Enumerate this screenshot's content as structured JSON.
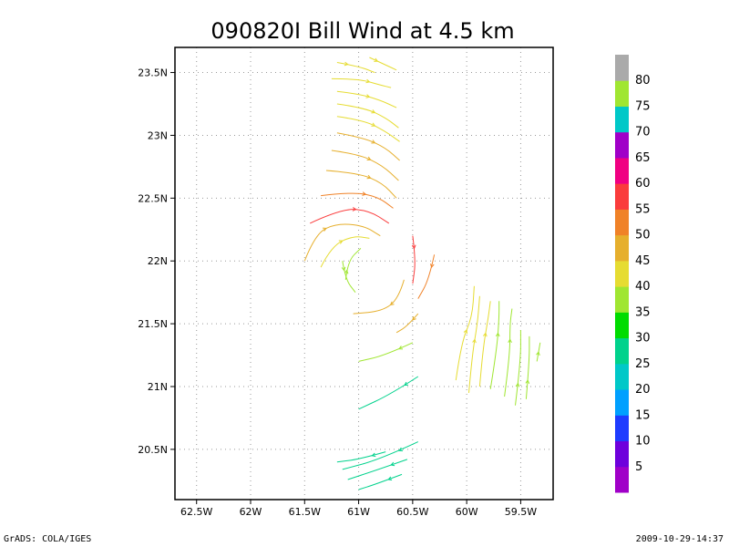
{
  "chart_data": {
    "type": "streamline",
    "title": "090820I Bill Wind at 4.5 km",
    "x_ticks": [
      "62.5W",
      "62W",
      "61.5W",
      "61W",
      "60.5W",
      "60W",
      "59.5W"
    ],
    "x_values": [
      -62.5,
      -62,
      -61.5,
      -61,
      -60.5,
      -60,
      -59.5
    ],
    "y_ticks": [
      "23.5N",
      "23N",
      "22.5N",
      "22N",
      "21.5N",
      "21N",
      "20.5N"
    ],
    "y_values": [
      23.5,
      23,
      22.5,
      22,
      21.5,
      21,
      20.5
    ],
    "xlim": [
      -62.7,
      -59.2
    ],
    "ylim": [
      20.1,
      23.7
    ],
    "grid": true,
    "colorbar": {
      "labels": [
        "5",
        "10",
        "15",
        "20",
        "25",
        "30",
        "35",
        "40",
        "45",
        "50",
        "55",
        "60",
        "65",
        "70",
        "75",
        "80"
      ],
      "colors": [
        "#a000c8",
        "#6e00dc",
        "#1e3cff",
        "#00a0ff",
        "#00c8c8",
        "#00d28c",
        "#00dc00",
        "#a0e632",
        "#e6dc32",
        "#e6af2d",
        "#f08228",
        "#fa3c3c",
        "#f00082",
        "#a000c8",
        "#00c8c8",
        "#a0e632",
        "#aaaaaa"
      ]
    },
    "streamlines": [
      {
        "pts": [
          [
            -61.2,
            23.58
          ],
          [
            -61.0,
            23.55
          ],
          [
            -60.85,
            23.5
          ]
        ],
        "speed": 40
      },
      {
        "pts": [
          [
            -60.9,
            23.62
          ],
          [
            -60.75,
            23.56
          ],
          [
            -60.65,
            23.52
          ]
        ],
        "speed": 40
      },
      {
        "pts": [
          [
            -61.25,
            23.45
          ],
          [
            -61.0,
            23.45
          ],
          [
            -60.8,
            23.4
          ],
          [
            -60.7,
            23.38
          ]
        ],
        "speed": 42
      },
      {
        "pts": [
          [
            -61.2,
            23.35
          ],
          [
            -61.0,
            23.33
          ],
          [
            -60.8,
            23.28
          ],
          [
            -60.65,
            23.22
          ]
        ],
        "speed": 42
      },
      {
        "pts": [
          [
            -61.2,
            23.25
          ],
          [
            -60.95,
            23.22
          ],
          [
            -60.75,
            23.14
          ],
          [
            -60.63,
            23.06
          ]
        ],
        "speed": 43
      },
      {
        "pts": [
          [
            -61.2,
            23.15
          ],
          [
            -60.95,
            23.12
          ],
          [
            -60.75,
            23.03
          ],
          [
            -60.62,
            22.95
          ]
        ],
        "speed": 44
      },
      {
        "pts": [
          [
            -61.2,
            23.02
          ],
          [
            -60.95,
            22.98
          ],
          [
            -60.75,
            22.9
          ],
          [
            -60.62,
            22.8
          ]
        ],
        "speed": 45
      },
      {
        "pts": [
          [
            -61.25,
            22.88
          ],
          [
            -61.0,
            22.85
          ],
          [
            -60.78,
            22.76
          ],
          [
            -60.63,
            22.64
          ]
        ],
        "speed": 47
      },
      {
        "pts": [
          [
            -61.3,
            22.72
          ],
          [
            -61.0,
            22.7
          ],
          [
            -60.78,
            22.62
          ],
          [
            -60.65,
            22.5
          ]
        ],
        "speed": 49
      },
      {
        "pts": [
          [
            -61.35,
            22.52
          ],
          [
            -61.05,
            22.55
          ],
          [
            -60.82,
            22.51
          ],
          [
            -60.68,
            22.42
          ]
        ],
        "speed": 52
      },
      {
        "pts": [
          [
            -61.45,
            22.3
          ],
          [
            -61.15,
            22.42
          ],
          [
            -60.9,
            22.4
          ],
          [
            -60.72,
            22.3
          ]
        ],
        "speed": 58
      },
      {
        "pts": [
          [
            -61.5,
            22.0
          ],
          [
            -61.4,
            22.22
          ],
          [
            -61.2,
            22.3
          ],
          [
            -60.95,
            22.28
          ],
          [
            -60.8,
            22.2
          ]
        ],
        "speed": 46
      },
      {
        "pts": [
          [
            -61.35,
            21.95
          ],
          [
            -61.25,
            22.12
          ],
          [
            -61.05,
            22.2
          ],
          [
            -60.9,
            22.18
          ]
        ],
        "speed": 44
      },
      {
        "pts": [
          [
            -61.12,
            21.85
          ],
          [
            -61.1,
            22.0
          ],
          [
            -60.98,
            22.1
          ]
        ],
        "speed": 36
      },
      {
        "pts": [
          [
            -61.15,
            22.0
          ],
          [
            -61.12,
            21.85
          ],
          [
            -61.03,
            21.75
          ]
        ],
        "speed": 35
      },
      {
        "pts": [
          [
            -60.5,
            22.2
          ],
          [
            -60.47,
            22.0
          ],
          [
            -60.5,
            21.82
          ]
        ],
        "speed": 56
      },
      {
        "pts": [
          [
            -60.3,
            22.05
          ],
          [
            -60.35,
            21.85
          ],
          [
            -60.45,
            21.7
          ]
        ],
        "speed": 50
      },
      {
        "pts": [
          [
            -60.58,
            21.85
          ],
          [
            -60.63,
            21.7
          ],
          [
            -60.78,
            21.6
          ],
          [
            -61.05,
            21.58
          ]
        ],
        "speed": 45
      },
      {
        "pts": [
          [
            -60.45,
            21.58
          ],
          [
            -60.55,
            21.48
          ],
          [
            -60.65,
            21.43
          ]
        ],
        "speed": 48
      },
      {
        "pts": [
          [
            -60.5,
            21.35
          ],
          [
            -60.75,
            21.25
          ],
          [
            -61.0,
            21.2
          ]
        ],
        "speed": 35
      },
      {
        "pts": [
          [
            -60.45,
            21.08
          ],
          [
            -60.7,
            20.94
          ],
          [
            -61.0,
            20.82
          ]
        ],
        "speed": 28
      },
      {
        "pts": [
          [
            -60.45,
            20.56
          ],
          [
            -60.8,
            20.42
          ],
          [
            -61.15,
            20.34
          ]
        ],
        "speed": 27
      },
      {
        "pts": [
          [
            -60.55,
            20.42
          ],
          [
            -60.85,
            20.33
          ],
          [
            -61.1,
            20.26
          ]
        ],
        "speed": 26
      },
      {
        "pts": [
          [
            -60.6,
            20.3
          ],
          [
            -60.85,
            20.22
          ],
          [
            -61.0,
            20.18
          ]
        ],
        "speed": 25
      },
      {
        "pts": [
          [
            -60.75,
            20.48
          ],
          [
            -61.0,
            20.42
          ],
          [
            -61.2,
            20.4
          ]
        ],
        "speed": 27
      },
      {
        "pts": [
          [
            -60.1,
            21.05
          ],
          [
            -60.05,
            21.35
          ],
          [
            -59.95,
            21.55
          ],
          [
            -59.93,
            21.8
          ]
        ],
        "speed": 42
      },
      {
        "pts": [
          [
            -59.98,
            20.95
          ],
          [
            -59.95,
            21.25
          ],
          [
            -59.9,
            21.5
          ],
          [
            -59.88,
            21.72
          ]
        ],
        "speed": 40
      },
      {
        "pts": [
          [
            -59.88,
            21.0
          ],
          [
            -59.85,
            21.3
          ],
          [
            -59.8,
            21.55
          ],
          [
            -59.78,
            21.68
          ]
        ],
        "speed": 40
      },
      {
        "pts": [
          [
            -59.78,
            20.98
          ],
          [
            -59.72,
            21.3
          ],
          [
            -59.7,
            21.55
          ],
          [
            -59.7,
            21.68
          ]
        ],
        "speed": 38
      },
      {
        "pts": [
          [
            -59.65,
            20.92
          ],
          [
            -59.6,
            21.25
          ],
          [
            -59.6,
            21.5
          ],
          [
            -59.58,
            21.62
          ]
        ],
        "speed": 37
      },
      {
        "pts": [
          [
            -59.55,
            20.85
          ],
          [
            -59.5,
            21.2
          ],
          [
            -59.5,
            21.45
          ]
        ],
        "speed": 36
      },
      {
        "pts": [
          [
            -59.45,
            20.9
          ],
          [
            -59.42,
            21.2
          ],
          [
            -59.42,
            21.4
          ]
        ],
        "speed": 36
      },
      {
        "pts": [
          [
            -59.35,
            21.2
          ],
          [
            -59.32,
            21.35
          ]
        ],
        "speed": 37
      }
    ]
  },
  "footer": {
    "left": "GrADS: COLA/IGES",
    "right": "2009-10-29-14:37"
  }
}
